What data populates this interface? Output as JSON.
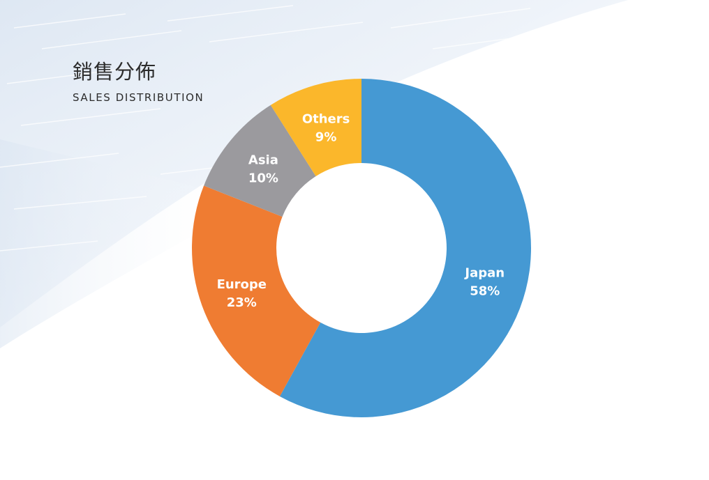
{
  "title": {
    "main": "銷售分佈",
    "sub": "SALES DISTRIBUTION"
  },
  "chart_data": {
    "type": "pie",
    "style": "donut",
    "title": "銷售分佈",
    "subtitle": "SALES DISTRIBUTION",
    "start_angle_deg": 0,
    "direction": "clockwise",
    "slices": [
      {
        "label": "Japan",
        "value": 58,
        "value_label": "58%",
        "color": "#4599d3"
      },
      {
        "label": "Europe",
        "value": 23,
        "value_label": "23%",
        "color": "#ef7c32"
      },
      {
        "label": "Asia",
        "value": 10,
        "value_label": "10%",
        "color": "#9b9a9e"
      },
      {
        "label": "Others",
        "value": 9,
        "value_label": "9%",
        "color": "#fbb72b"
      }
    ]
  }
}
